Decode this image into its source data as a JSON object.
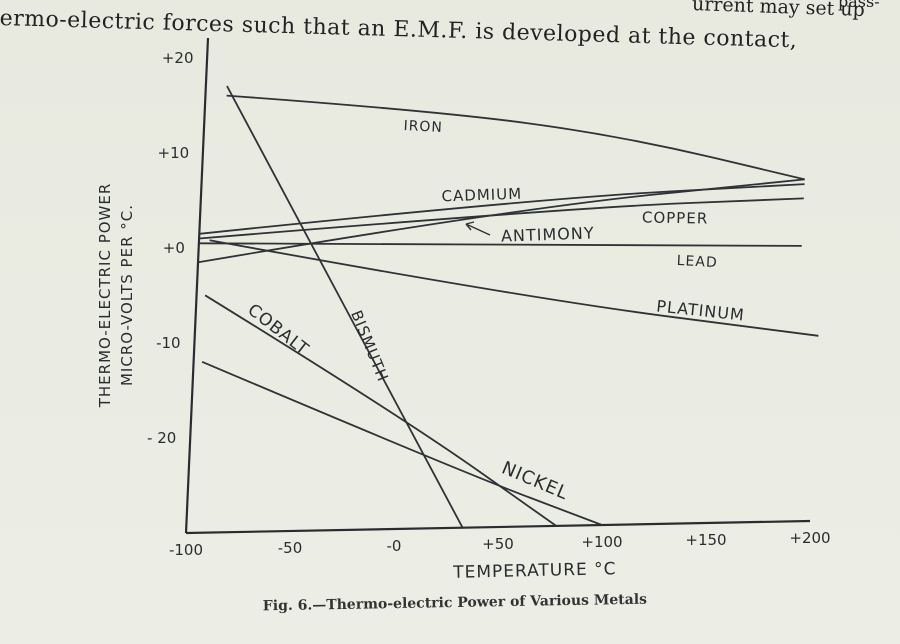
{
  "header": {
    "line1": "ermo-electric forces such that an E.M.F. is developed at the contact,",
    "fragment_top": "urrent may set up",
    "fragment_corner": "pass-"
  },
  "chart_data": {
    "type": "line",
    "title": "",
    "caption": "Fig. 6.—Thermo-electric Power of Various Metals",
    "xlabel": "TEMPERATURE °C",
    "ylabel_line1": "THERMO-ELECTRIC POWER",
    "ylabel_line2": "MICRO-VOLTS PER °C.",
    "xlim": [
      -100,
      200
    ],
    "ylim": [
      -30,
      22
    ],
    "x_ticks": [
      -100,
      -50,
      0,
      50,
      100,
      150,
      200
    ],
    "x_tick_labels": [
      "-100",
      "-50",
      "-0",
      "+50",
      "+100",
      "+150",
      "+200"
    ],
    "y_ticks": [
      20,
      10,
      0,
      -10,
      -20
    ],
    "y_tick_labels": [
      "+20",
      "+10",
      "+0",
      "-10",
      "- 20"
    ],
    "grid": false,
    "series": [
      {
        "name": "IRON",
        "x": [
          -90,
          10,
          100,
          190
        ],
        "y": [
          16,
          14,
          11,
          6
        ]
      },
      {
        "name": "CADMIUM",
        "x": [
          -100,
          50,
          190
        ],
        "y": [
          -1.5,
          3.5,
          6
        ]
      },
      {
        "name": "COPPER",
        "x": [
          -100,
          80,
          190
        ],
        "y": [
          1,
          3.5,
          4
        ]
      },
      {
        "name": "ANTIMONY",
        "x": [
          -100,
          60,
          190
        ],
        "y": [
          1.5,
          4.5,
          5.5
        ]
      },
      {
        "name": "LEAD",
        "x": [
          -100,
          190
        ],
        "y": [
          0.5,
          -1
        ]
      },
      {
        "name": "PLATINUM",
        "x": [
          -95,
          60,
          200
        ],
        "y": [
          0.8,
          -6,
          -10.5
        ]
      },
      {
        "name": "BISMUTH",
        "x": [
          -90,
          33
        ],
        "y": [
          17,
          -30
        ]
      },
      {
        "name": "COBALT",
        "x": [
          -96,
          0,
          78
        ],
        "y": [
          -5,
          -18,
          -30
        ]
      },
      {
        "name": "NICKEL",
        "x": [
          -96,
          30,
          100
        ],
        "y": [
          -12,
          -24,
          -30
        ]
      }
    ],
    "annotations": [
      {
        "text": "IRON"
      },
      {
        "text": "CADMIUM"
      },
      {
        "text": "COPPER"
      },
      {
        "text": "ANTIMONY"
      },
      {
        "text": "LEAD"
      },
      {
        "text": "PLATINUM"
      },
      {
        "text": "BISMUTH"
      },
      {
        "text": "COBALT"
      },
      {
        "text": "NICKEL"
      }
    ]
  }
}
